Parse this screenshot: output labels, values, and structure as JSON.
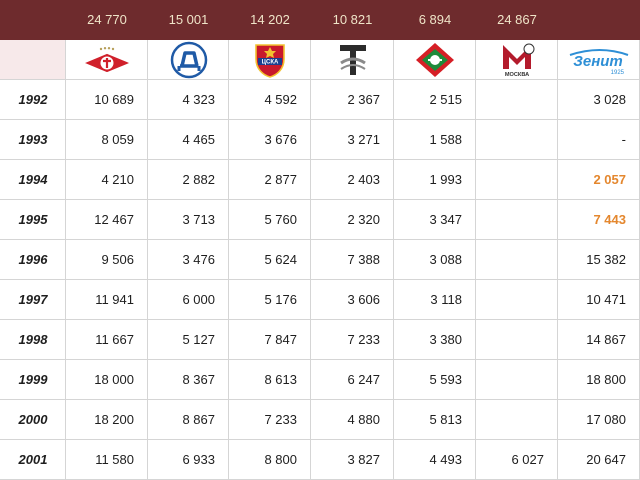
{
  "header": {
    "capacities": [
      "24 770",
      "15 001",
      "14 202",
      "10 821",
      "6 894",
      "24 867",
      ""
    ]
  },
  "clubs": [
    {
      "icon": "spartak-logo-icon"
    },
    {
      "icon": "dynamo-logo-icon"
    },
    {
      "icon": "cska-logo-icon",
      "text": "ЦСКА"
    },
    {
      "icon": "torpedo-logo-icon"
    },
    {
      "icon": "lokomotiv-logo-icon"
    },
    {
      "icon": "moskva-logo-icon",
      "text": "МОСКВА"
    },
    {
      "icon": "zenit-logo-icon",
      "text": "Зенит",
      "year": "1925"
    }
  ],
  "rows": [
    {
      "year": "1992",
      "values": [
        "10 689",
        "4 323",
        "4 592",
        "2 367",
        "2 515",
        "",
        "3 028"
      ]
    },
    {
      "year": "1993",
      "values": [
        "8 059",
        "4 465",
        "3 676",
        "3 271",
        "1 588",
        "",
        "-"
      ]
    },
    {
      "year": "1994",
      "values": [
        "4 210",
        "2 882",
        "2 877",
        "2 403",
        "1 993",
        "",
        "2 057"
      ]
    },
    {
      "year": "1995",
      "values": [
        "12 467",
        "3 713",
        "5 760",
        "2 320",
        "3 347",
        "",
        "7 443"
      ]
    },
    {
      "year": "1996",
      "values": [
        "9 506",
        "3 476",
        "5 624",
        "7 388",
        "3 088",
        "",
        "15 382"
      ]
    },
    {
      "year": "1997",
      "values": [
        "11 941",
        "6 000",
        "5 176",
        "3 606",
        "3 118",
        "",
        "10 471"
      ]
    },
    {
      "year": "1998",
      "values": [
        "11 667",
        "5 127",
        "7 847",
        "7 233",
        "3 380",
        "",
        "14 867"
      ]
    },
    {
      "year": "1999",
      "values": [
        "18 000",
        "8 367",
        "8 613",
        "6 247",
        "5 593",
        "",
        "18 800"
      ]
    },
    {
      "year": "2000",
      "values": [
        "18 200",
        "8 867",
        "7 233",
        "4 880",
        "5 813",
        "",
        "17 080"
      ]
    },
    {
      "year": "2001",
      "values": [
        "11 580",
        "6 933",
        "8 800",
        "3 827",
        "4 493",
        "6 027",
        "20 647"
      ]
    }
  ],
  "highlights": [
    {
      "row": 2,
      "col": 6
    },
    {
      "row": 3,
      "col": 6
    }
  ],
  "colors": {
    "header_bg": "#6e2b2d",
    "header_text": "#efe4c8",
    "highlight": "#e4872e",
    "first_col_header": "#f7e9ea"
  }
}
